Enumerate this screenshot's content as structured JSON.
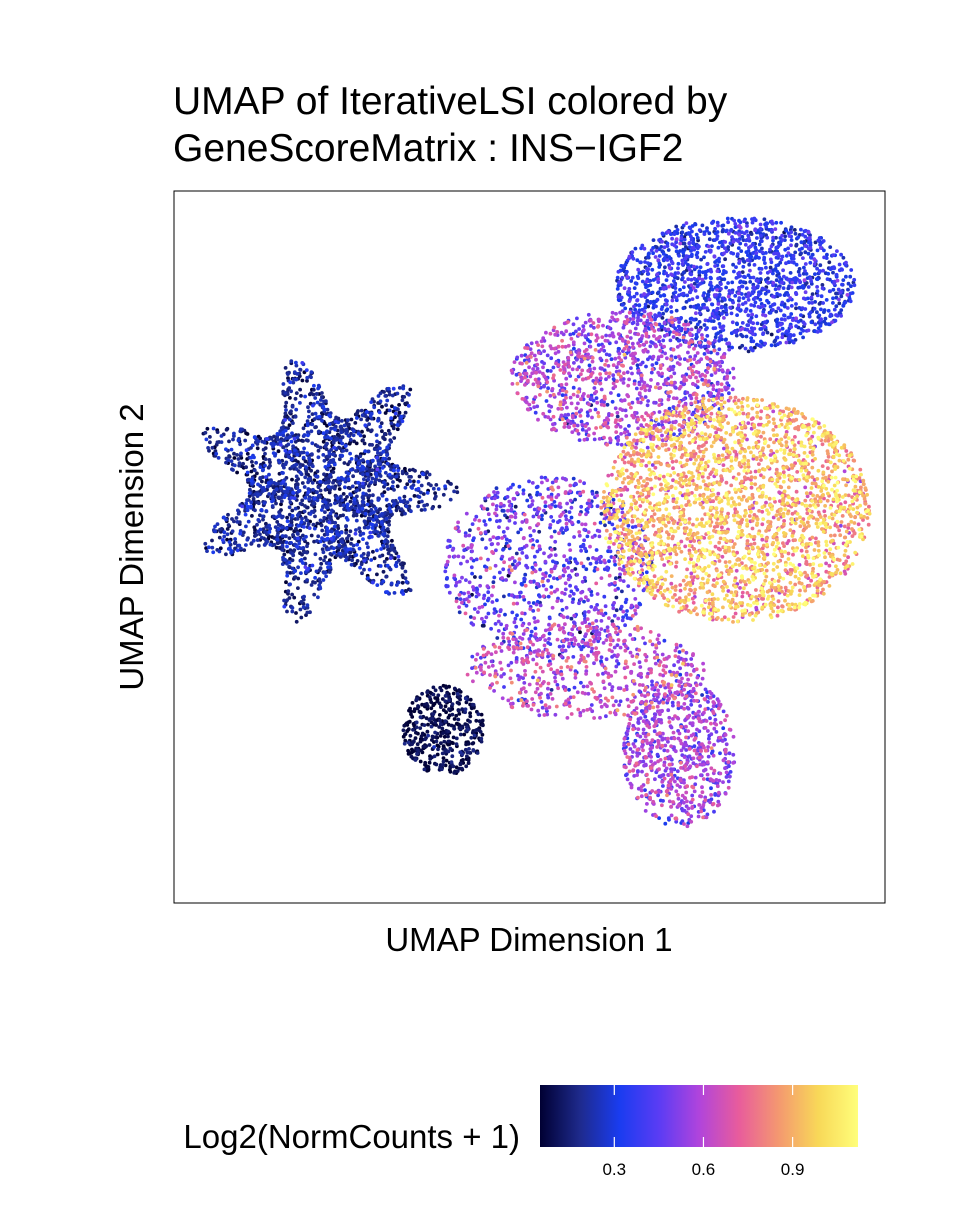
{
  "chart_data": {
    "type": "scatter",
    "title_lines": [
      "UMAP of IterativeLSI colored by",
      "GeneScoreMatrix : INS−IGF2"
    ],
    "xlabel": "UMAP Dimension 1",
    "ylabel": "UMAP Dimension 2",
    "x_ticks_shown": false,
    "y_ticks_shown": false,
    "grid": false,
    "color_scale": {
      "title": "Log2(NormCounts + 1)",
      "range": [
        0.05,
        1.12
      ],
      "ticks": [
        0.3,
        0.6,
        0.9
      ],
      "tick_labels": [
        "0.3",
        "0.6",
        "0.9"
      ],
      "colors": [
        "#000033",
        "#1e2a8c",
        "#1a3cf0",
        "#5b3cf4",
        "#b044dc",
        "#e85c9c",
        "#f49870",
        "#f8d858",
        "#fffe7a"
      ],
      "position": "bottom"
    },
    "clusters": [
      {
        "description": "left star-shaped cluster",
        "cx": -6.0,
        "cy": 2.0,
        "rx": 3.6,
        "ry": 3.6,
        "n": 2200,
        "value_mean": 0.18,
        "value_sd": 0.08,
        "shape": "star"
      },
      {
        "description": "bottom small oval cluster",
        "cx": -2.8,
        "cy": -4.4,
        "rx": 1.1,
        "ry": 1.2,
        "n": 420,
        "value_mean": 0.08,
        "value_sd": 0.05,
        "shape": "oval"
      },
      {
        "description": "top-right cluster",
        "cx": 5.0,
        "cy": 7.5,
        "rx": 3.2,
        "ry": 1.8,
        "n": 1500,
        "value_mean": 0.33,
        "value_sd": 0.08,
        "shape": "oval"
      },
      {
        "description": "upper-middle transition region",
        "cx": 2.0,
        "cy": 5.0,
        "rx": 3.0,
        "ry": 1.8,
        "n": 1100,
        "value_mean": 0.55,
        "value_sd": 0.12,
        "shape": "oval"
      },
      {
        "description": "right high-expression region",
        "cx": 5.0,
        "cy": 1.5,
        "rx": 3.6,
        "ry": 3.0,
        "n": 2600,
        "value_mean": 0.9,
        "value_sd": 0.14,
        "shape": "oval"
      },
      {
        "description": "central bridge region",
        "cx": 0.0,
        "cy": 0.0,
        "rx": 2.8,
        "ry": 2.4,
        "n": 900,
        "value_mean": 0.45,
        "value_sd": 0.14,
        "shape": "oval"
      },
      {
        "description": "lower-right tail",
        "cx": 3.5,
        "cy": -5.0,
        "rx": 1.5,
        "ry": 2.0,
        "n": 700,
        "value_mean": 0.55,
        "value_sd": 0.1,
        "shape": "oval"
      },
      {
        "description": "lower-middle band",
        "cx": 1.0,
        "cy": -2.8,
        "rx": 3.2,
        "ry": 1.3,
        "n": 600,
        "value_mean": 0.6,
        "value_sd": 0.12,
        "shape": "oval"
      }
    ],
    "xlim": [
      -10,
      9
    ],
    "ylim": [
      -9,
      10
    ]
  }
}
